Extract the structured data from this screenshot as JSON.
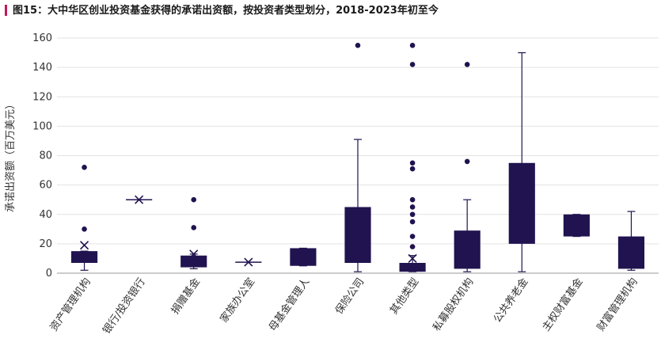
{
  "chart_data": {
    "type": "box",
    "title": "图15：大中华区创业投资基金获得的承诺出资额，按投资者类型划分，2018-2023年初至今",
    "ylabel": "承诺出资额（百万美元）",
    "xlabel": "",
    "ylim": [
      0,
      160
    ],
    "yticks": [
      0,
      20,
      40,
      60,
      80,
      100,
      120,
      140,
      160
    ],
    "grid": true,
    "colors": {
      "box": "#21134f",
      "title_accent": "#c2185b"
    },
    "categories": [
      "资产管理机构",
      "银行/投资银行",
      "捐赠基金",
      "家族办公室",
      "母基金管理人",
      "保险公司",
      "其他类型",
      "私募股权机构",
      "公共养老金",
      "主权财富基金",
      "财富管理机构"
    ],
    "boxes": [
      {
        "category": "资产管理机构",
        "min": 2,
        "q1": 7,
        "median": 13,
        "q3": 15,
        "max": 15,
        "mean": 19,
        "outliers": [
          30,
          72
        ]
      },
      {
        "category": "银行/投资银行",
        "min": 50,
        "q1": 50,
        "median": 50,
        "q3": 50,
        "max": 50,
        "mean": 50,
        "outliers": []
      },
      {
        "category": "捐赠基金",
        "min": 3,
        "q1": 4,
        "median": 10,
        "q3": 12,
        "max": 13,
        "mean": 13,
        "outliers": [
          31,
          50
        ]
      },
      {
        "category": "家族办公室",
        "min": 7.5,
        "q1": 7.5,
        "median": 7.5,
        "q3": 7.5,
        "max": 7.5,
        "mean": 7.5,
        "outliers": []
      },
      {
        "category": "母基金管理人",
        "min": 5,
        "q1": 5,
        "median": 10,
        "q3": 17,
        "max": 17,
        "mean": null,
        "outliers": []
      },
      {
        "category": "保险公司",
        "min": 1,
        "q1": 7,
        "median": 25,
        "q3": 45,
        "max": 91,
        "mean": null,
        "outliers": [
          155
        ]
      },
      {
        "category": "其他类型",
        "min": 1,
        "q1": 1,
        "median": 4,
        "q3": 7,
        "max": 12,
        "mean": 10,
        "outliers": [
          18,
          25,
          35,
          40,
          45,
          50,
          71,
          75,
          142,
          155
        ]
      },
      {
        "category": "私募股权机构",
        "min": 1,
        "q1": 3,
        "median": 15,
        "q3": 29,
        "max": 50,
        "mean": null,
        "outliers": [
          76,
          142
        ]
      },
      {
        "category": "公共养老金",
        "min": 1,
        "q1": 20,
        "median": 50,
        "q3": 75,
        "max": 150,
        "mean": null,
        "outliers": []
      },
      {
        "category": "主权财富基金",
        "min": 25,
        "q1": 25,
        "median": 32,
        "q3": 40,
        "max": 40,
        "mean": null,
        "outliers": []
      },
      {
        "category": "财富管理机构",
        "min": 2,
        "q1": 3,
        "median": 12,
        "q3": 25,
        "max": 42,
        "mean": null,
        "outliers": []
      }
    ]
  }
}
